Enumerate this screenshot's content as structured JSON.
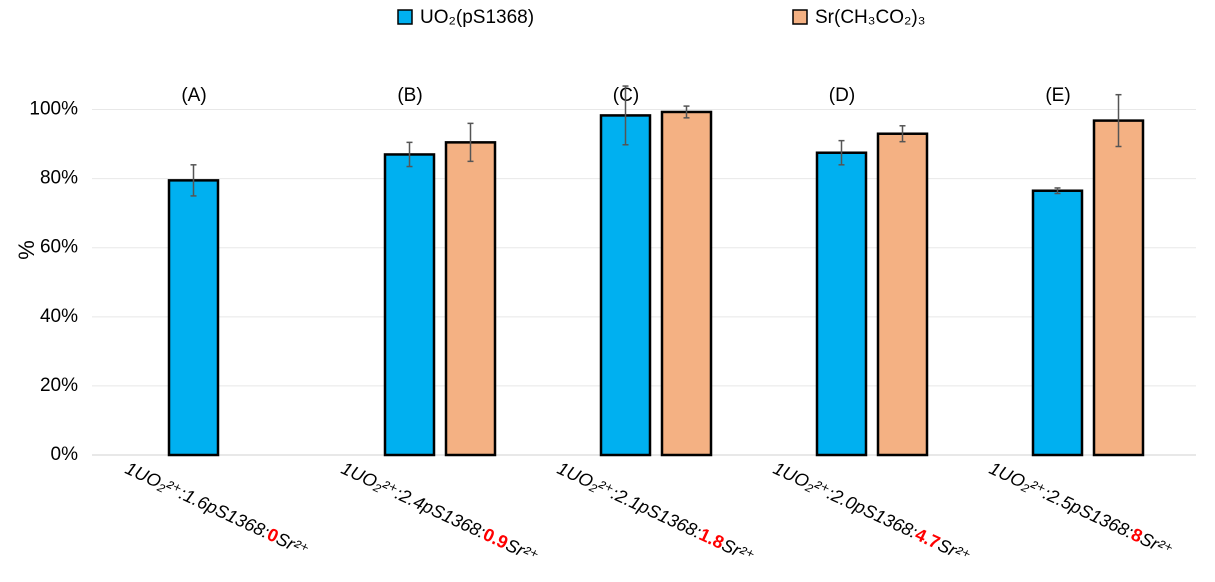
{
  "chart_data": {
    "type": "bar",
    "y_label": "%",
    "categories": [
      "1UO₂²⁺:1.6pS1368:0Sr²⁺",
      "1UO₂²⁺:2.4pS1368:0.9Sr²⁺",
      "1UO₂²⁺:2.1pS1368:1.8Sr²⁺",
      "1UO₂²⁺:2.0pS1368:4.7Sr²⁺",
      "1UO₂²⁺:2.5pS1368:8Sr²⁺"
    ],
    "panel_labels": [
      "(A)",
      "(B)",
      "(C)",
      "(D)",
      "(E)"
    ],
    "series": [
      {
        "name": "UO₂(pS1368)",
        "color": "#00b0f0",
        "values": [
          79.5,
          87,
          98.3,
          87.5,
          76.5
        ],
        "errors": [
          4.5,
          3.5,
          8.5,
          3.5,
          0.8
        ]
      },
      {
        "name": "Sr(CH₃CO₂)₃",
        "color": "#f4b183",
        "values": [
          null,
          90.5,
          99.3,
          93,
          96.8
        ],
        "errors": [
          null,
          5.5,
          1.7,
          2.3,
          7.5
        ]
      }
    ],
    "ylim": [
      0,
      110
    ],
    "yticks": [
      {
        "value": 0,
        "label": "0%"
      },
      {
        "value": 20,
        "label": "20%"
      },
      {
        "value": 40,
        "label": "40%"
      },
      {
        "value": 60,
        "label": "60%"
      },
      {
        "value": 80,
        "label": "80%"
      },
      {
        "value": 100,
        "label": "100%"
      }
    ],
    "grid": true,
    "legend": "top"
  }
}
